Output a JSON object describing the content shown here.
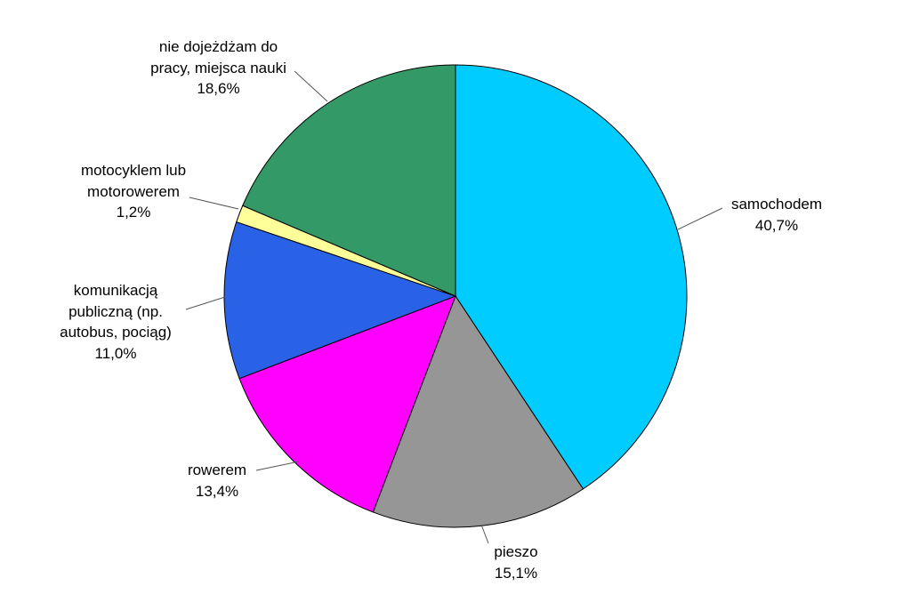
{
  "chart_data": {
    "type": "pie",
    "categories": [
      "samochodem",
      "pieszo",
      "rowerem",
      "komunikacją publiczną (np. autobus, pociąg)",
      "motocyklem lub motorowerem",
      "nie dojeżdżam do pracy, miejsca nauki"
    ],
    "values": [
      40.7,
      15.1,
      13.4,
      11.0,
      1.2,
      18.6
    ],
    "value_labels": [
      "40,7%",
      "15,1%",
      "13,4%",
      "11,0%",
      "1,2%",
      "18,6%"
    ],
    "colors": [
      "#00ccff",
      "#969696",
      "#ff00ff",
      "#2962e6",
      "#ffff99",
      "#339966"
    ]
  }
}
